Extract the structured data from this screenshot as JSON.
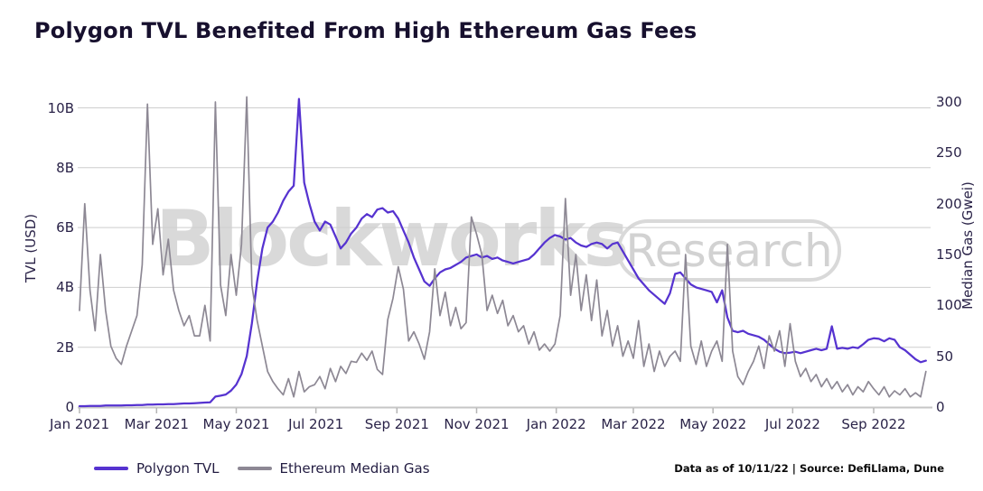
{
  "header": {
    "title": "Polygon TVL Benefited From High Ethereum Gas Fees"
  },
  "watermark": {
    "brand": "Blockworks",
    "badge": "Research"
  },
  "legend": [
    {
      "label": "Polygon TVL",
      "color": "#5633d0"
    },
    {
      "label": "Ethereum Median Gas",
      "color": "#8d8894"
    }
  ],
  "footer": {
    "text": "Data as of 10/11/22 | Source: DefiLlama, Dune"
  },
  "colors": {
    "tvl_line": "#5633d0",
    "gas_line": "#8d8894",
    "gridline": "#cecece",
    "title_text": "#17102e",
    "watermark": "#d9d9d9"
  },
  "chart_data": {
    "type": "line",
    "title": "Polygon TVL Benefited From High Ethereum Gas Fees",
    "grid": "horizontal",
    "legend_position": "bottom-left",
    "x_start_date": "2021-01-01",
    "x_end_date": "2022-10-11",
    "x_interval_days": 4,
    "x_ticks": [
      {
        "label": "Jan 2021",
        "day": 0
      },
      {
        "label": "Mar 2021",
        "day": 59
      },
      {
        "label": "May 2021",
        "day": 120
      },
      {
        "label": "Jul 2021",
        "day": 181
      },
      {
        "label": "Sep 2021",
        "day": 243
      },
      {
        "label": "Nov 2021",
        "day": 304
      },
      {
        "label": "Jan 2022",
        "day": 365
      },
      {
        "label": "Mar 2022",
        "day": 424
      },
      {
        "label": "May 2022",
        "day": 485
      },
      {
        "label": "Jul 2022",
        "day": 546
      },
      {
        "label": "Sep 2022",
        "day": 608
      }
    ],
    "left_axis": {
      "label": "TVL (USD)",
      "unit": "USD billions",
      "range_billions": [
        0,
        10
      ],
      "ticks": [
        {
          "label": "0",
          "value": 0
        },
        {
          "label": "2B",
          "value": 2
        },
        {
          "label": "4B",
          "value": 4
        },
        {
          "label": "6B",
          "value": 6
        },
        {
          "label": "8B",
          "value": 8
        },
        {
          "label": "10B",
          "value": 10
        }
      ]
    },
    "right_axis": {
      "label": "Median Gas (Gwei)",
      "unit": "Gwei",
      "range": [
        0,
        300
      ],
      "ticks": [
        {
          "label": "0",
          "value": 0
        },
        {
          "label": "50",
          "value": 50
        },
        {
          "label": "100",
          "value": 100
        },
        {
          "label": "150",
          "value": 150
        },
        {
          "label": "200",
          "value": 200
        },
        {
          "label": "250",
          "value": 250
        },
        {
          "label": "300",
          "value": 300
        }
      ]
    },
    "series": [
      {
        "name": "Polygon TVL",
        "axis": "left",
        "color": "#5633d0",
        "stroke_width": 2.25,
        "unit": "USD billions",
        "values": [
          0.03,
          0.03,
          0.04,
          0.04,
          0.04,
          0.05,
          0.05,
          0.05,
          0.05,
          0.06,
          0.06,
          0.07,
          0.07,
          0.08,
          0.08,
          0.09,
          0.09,
          0.1,
          0.1,
          0.11,
          0.12,
          0.12,
          0.13,
          0.14,
          0.15,
          0.16,
          0.35,
          0.38,
          0.42,
          0.55,
          0.75,
          1.1,
          1.7,
          2.8,
          4.2,
          5.3,
          6.0,
          6.2,
          6.5,
          6.9,
          7.2,
          7.4,
          10.3,
          7.5,
          6.8,
          6.2,
          5.9,
          6.2,
          6.1,
          5.7,
          5.3,
          5.5,
          5.8,
          6.0,
          6.3,
          6.45,
          6.35,
          6.6,
          6.65,
          6.5,
          6.55,
          6.3,
          5.9,
          5.5,
          5.0,
          4.6,
          4.2,
          4.05,
          4.3,
          4.5,
          4.6,
          4.65,
          4.75,
          4.85,
          5.0,
          5.05,
          5.1,
          5.0,
          5.05,
          4.95,
          5.0,
          4.9,
          4.85,
          4.8,
          4.85,
          4.9,
          4.95,
          5.1,
          5.3,
          5.5,
          5.65,
          5.75,
          5.7,
          5.6,
          5.65,
          5.5,
          5.4,
          5.35,
          5.45,
          5.5,
          5.45,
          5.3,
          5.45,
          5.5,
          5.2,
          4.9,
          4.6,
          4.3,
          4.1,
          3.9,
          3.75,
          3.6,
          3.45,
          3.8,
          4.45,
          4.5,
          4.3,
          4.1,
          4.0,
          3.95,
          3.9,
          3.85,
          3.5,
          3.9,
          3.0,
          2.55,
          2.5,
          2.55,
          2.45,
          2.4,
          2.35,
          2.25,
          2.1,
          1.95,
          1.85,
          1.8,
          1.82,
          1.85,
          1.8,
          1.85,
          1.9,
          1.95,
          1.9,
          1.95,
          2.7,
          1.95,
          1.98,
          1.95,
          2.0,
          1.97,
          2.1,
          2.25,
          2.3,
          2.28,
          2.2,
          2.3,
          2.25,
          2.0,
          1.9,
          1.75,
          1.6,
          1.5,
          1.55
        ]
      },
      {
        "name": "Ethereum Median Gas",
        "axis": "right",
        "color": "#8d8894",
        "stroke_width": 1.7,
        "unit": "Gwei",
        "values": [
          95,
          200,
          115,
          75,
          150,
          95,
          60,
          48,
          42,
          60,
          75,
          90,
          140,
          298,
          160,
          195,
          130,
          165,
          115,
          95,
          80,
          90,
          70,
          70,
          100,
          65,
          300,
          120,
          90,
          150,
          110,
          160,
          305,
          120,
          85,
          60,
          35,
          25,
          18,
          12,
          28,
          10,
          35,
          15,
          20,
          22,
          30,
          18,
          38,
          25,
          40,
          33,
          45,
          44,
          53,
          46,
          55,
          37,
          32,
          86,
          107,
          138,
          116,
          65,
          74,
          62,
          47,
          74,
          136,
          90,
          113,
          80,
          98,
          77,
          83,
          187,
          170,
          150,
          95,
          110,
          92,
          105,
          80,
          90,
          74,
          80,
          62,
          74,
          56,
          62,
          55,
          62,
          90,
          205,
          110,
          150,
          95,
          130,
          85,
          125,
          70,
          95,
          60,
          80,
          50,
          65,
          48,
          85,
          40,
          62,
          35,
          55,
          40,
          50,
          55,
          45,
          150,
          60,
          42,
          65,
          40,
          55,
          65,
          45,
          160,
          55,
          30,
          22,
          35,
          45,
          60,
          38,
          70,
          55,
          75,
          40,
          82,
          45,
          30,
          38,
          25,
          32,
          20,
          28,
          18,
          25,
          15,
          22,
          12,
          20,
          15,
          25,
          18,
          12,
          20,
          10,
          16,
          12,
          18,
          10,
          14,
          10,
          35
        ]
      }
    ]
  }
}
